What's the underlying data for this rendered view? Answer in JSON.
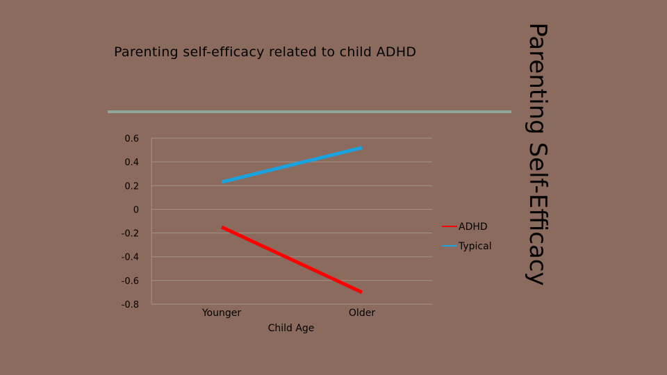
{
  "slide": {
    "vertical_title": "Parenting Self-Efficacy"
  },
  "chart_data": {
    "type": "line",
    "title": "Parenting self-efficacy related to child ADHD",
    "xlabel": "Child Age",
    "ylabel": "",
    "categories": [
      "Younger",
      "Older"
    ],
    "ylim": [
      -0.8,
      0.6
    ],
    "yticks": [
      0.6,
      0.4,
      0.2,
      0,
      -0.2,
      -0.4,
      -0.6,
      -0.8
    ],
    "ytick_labels": [
      "0.6",
      "0.4",
      "0.2",
      "0",
      "-0.2",
      "-0.4",
      "-0.6",
      "-0.8"
    ],
    "grid": true,
    "legend_position": "right",
    "series": [
      {
        "name": "ADHD",
        "values": [
          -0.15,
          -0.7
        ],
        "color": "#ff0000"
      },
      {
        "name": "Typical",
        "values": [
          0.23,
          0.52
        ],
        "color": "#1aa3e0"
      }
    ]
  }
}
